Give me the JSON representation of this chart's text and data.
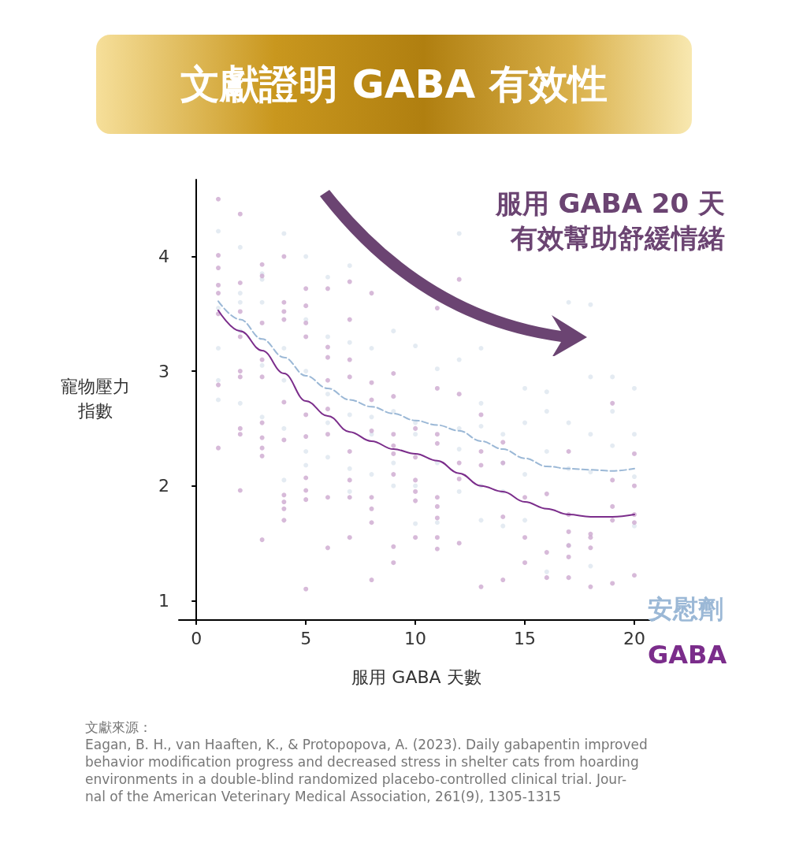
{
  "chart_data": {
    "type": "scatter",
    "title": "文獻證明 GABA 有效性",
    "xlabel": "服用 GABA 天數",
    "ylabel": "寵物壓力指數",
    "annotations": [
      "服用 GABA 20 天有效幫助舒緩情緒",
      "文獻來源：\nEagan, B. H., van Haaften, K., & Protopopova, A. (2023). Daily gabapentin improved\nbehavior modification progress and decreased stress in shelter cats from hoarding\nenvironments in a double-blind randomized placebo-controlled clinical trial. Jour-\nnal of the American Veterinary Medical Association, 261(9), 1305-1315"
    ],
    "xlim": [
      -0.8,
      20.9
    ],
    "xticks": [
      0,
      5,
      10,
      15,
      20
    ],
    "ylim": [
      0.83,
      4.67
    ],
    "yticks": [
      1,
      2,
      3,
      4
    ],
    "grid": false,
    "legend": false,
    "series": [
      {
        "type": "scatter",
        "marker": "circle",
        "color": "#dde6ef",
        "x": [
          1,
          1,
          1,
          1,
          1,
          2,
          2,
          2,
          2,
          2,
          3,
          3,
          3,
          3,
          3,
          4,
          4,
          4,
          4,
          4,
          5,
          5,
          5,
          5,
          5,
          6,
          6,
          6,
          6,
          6,
          7,
          7,
          7,
          7,
          7,
          8,
          8,
          8,
          8,
          9,
          9,
          9,
          9,
          10,
          10,
          10,
          10,
          10,
          11,
          11,
          11,
          12,
          12,
          12,
          12,
          12,
          13,
          13,
          13,
          13,
          13,
          14,
          14,
          14,
          14,
          15,
          15,
          15,
          15,
          16,
          16,
          16,
          16,
          17,
          17,
          17,
          17,
          18,
          18,
          18,
          18,
          18,
          19,
          19,
          19,
          20,
          20,
          20,
          20
        ],
        "values": [
          4.22,
          3.55,
          3.2,
          2.92,
          2.75,
          4.08,
          3.68,
          3.6,
          3.35,
          2.72,
          3.85,
          3.8,
          3.6,
          3.05,
          2.6,
          4.2,
          3.2,
          2.92,
          2.5,
          2.05,
          4.0,
          3.45,
          3.0,
          2.3,
          2.18,
          3.82,
          3.3,
          2.8,
          2.55,
          2.25,
          3.92,
          3.25,
          2.62,
          2.15,
          1.95,
          3.2,
          2.6,
          2.45,
          2.1,
          3.35,
          2.65,
          2.2,
          2.0,
          3.22,
          2.55,
          2.45,
          2.0,
          1.67,
          3.02,
          2.2,
          1.68,
          4.2,
          3.1,
          2.5,
          2.32,
          1.95,
          3.2,
          2.72,
          2.52,
          2.0,
          1.7,
          2.45,
          2.2,
          1.95,
          1.65,
          2.85,
          2.55,
          2.1,
          1.7,
          2.82,
          2.65,
          2.3,
          1.25,
          3.6,
          2.55,
          2.15,
          1.48,
          3.58,
          2.95,
          2.45,
          2.12,
          1.3,
          2.95,
          2.65,
          2.35,
          2.85,
          2.45,
          2.08,
          1.65
        ]
      },
      {
        "type": "scatter",
        "marker": "circle",
        "color": "#cda9cf",
        "x": [
          1,
          1,
          1,
          1,
          1,
          1,
          1,
          1,
          2,
          2,
          2,
          2,
          2,
          2,
          2,
          2,
          2,
          3,
          3,
          3,
          3,
          3,
          3,
          3,
          3,
          3,
          3,
          4,
          4,
          4,
          4,
          4,
          4,
          4,
          4,
          4,
          4,
          5,
          5,
          5,
          5,
          5,
          5,
          5,
          5,
          5,
          5,
          6,
          6,
          6,
          6,
          6,
          6,
          6,
          6,
          7,
          7,
          7,
          7,
          7,
          7,
          7,
          7,
          8,
          8,
          8,
          8,
          8,
          8,
          8,
          8,
          9,
          9,
          9,
          9,
          9,
          9,
          9,
          9,
          10,
          10,
          10,
          10,
          10,
          10,
          11,
          11,
          11,
          11,
          11,
          11,
          11,
          11,
          11,
          12,
          12,
          12,
          12,
          12,
          13,
          13,
          13,
          13,
          14,
          14,
          14,
          14,
          15,
          15,
          15,
          16,
          16,
          16,
          17,
          17,
          17,
          17,
          17,
          17,
          18,
          18,
          18,
          18,
          19,
          19,
          19,
          19,
          19,
          20,
          20,
          20,
          20,
          20
        ],
        "values": [
          4.5,
          4.01,
          3.9,
          3.75,
          3.68,
          3.5,
          2.88,
          2.33,
          4.37,
          3.77,
          3.52,
          3.3,
          3.0,
          2.95,
          2.5,
          2.45,
          1.96,
          3.93,
          3.83,
          3.42,
          3.1,
          2.95,
          2.55,
          2.42,
          2.33,
          2.26,
          1.53,
          4.0,
          3.6,
          3.52,
          3.45,
          2.73,
          2.4,
          1.92,
          1.86,
          1.8,
          1.7,
          3.72,
          3.57,
          3.42,
          3.3,
          2.62,
          2.43,
          2.07,
          1.96,
          1.88,
          1.1,
          3.72,
          3.21,
          3.12,
          2.92,
          2.67,
          2.45,
          1.9,
          1.46,
          3.78,
          3.45,
          3.1,
          2.95,
          2.3,
          2.05,
          1.9,
          1.55,
          3.68,
          2.9,
          2.75,
          2.48,
          1.9,
          1.8,
          1.68,
          1.18,
          2.98,
          2.78,
          2.45,
          2.35,
          2.28,
          2.1,
          1.47,
          1.33,
          2.5,
          2.25,
          2.05,
          1.95,
          1.87,
          1.55,
          3.55,
          2.85,
          2.45,
          2.37,
          1.9,
          1.82,
          1.72,
          1.55,
          1.45,
          3.8,
          2.8,
          2.2,
          2.06,
          1.5,
          2.62,
          2.3,
          2.18,
          1.12,
          2.38,
          2.2,
          1.73,
          1.18,
          1.9,
          1.55,
          1.33,
          1.93,
          1.42,
          1.2,
          2.3,
          1.75,
          1.6,
          1.48,
          1.38,
          1.2,
          1.58,
          1.55,
          1.46,
          1.12,
          2.72,
          2.05,
          1.82,
          1.7,
          1.15,
          2.28,
          2.0,
          1.75,
          1.68,
          1.22
        ]
      },
      {
        "type": "line",
        "name": "安慰劑",
        "marker": "none",
        "line_style": "dashed",
        "color": "#9bb8d6",
        "x": [
          1,
          2,
          3,
          4,
          5,
          6,
          7,
          8,
          9,
          10,
          11,
          12,
          13,
          14,
          15,
          16,
          17,
          18,
          19,
          20
        ],
        "values": [
          3.61,
          3.45,
          3.28,
          3.12,
          2.96,
          2.85,
          2.75,
          2.69,
          2.63,
          2.57,
          2.53,
          2.48,
          2.39,
          2.32,
          2.24,
          2.17,
          2.15,
          2.14,
          2.13,
          2.15
        ]
      },
      {
        "type": "line",
        "name": "GABA",
        "marker": "none",
        "line_style": "solid",
        "color": "#7b2d8b",
        "x": [
          1,
          2,
          3,
          4,
          5,
          6,
          7,
          8,
          9,
          10,
          11,
          12,
          13,
          14,
          15,
          16,
          17,
          18,
          19,
          20
        ],
        "values": [
          3.53,
          3.35,
          3.18,
          2.98,
          2.74,
          2.61,
          2.47,
          2.39,
          2.32,
          2.28,
          2.22,
          2.11,
          2.0,
          1.95,
          1.86,
          1.8,
          1.75,
          1.73,
          1.73,
          1.75
        ]
      }
    ]
  }
}
